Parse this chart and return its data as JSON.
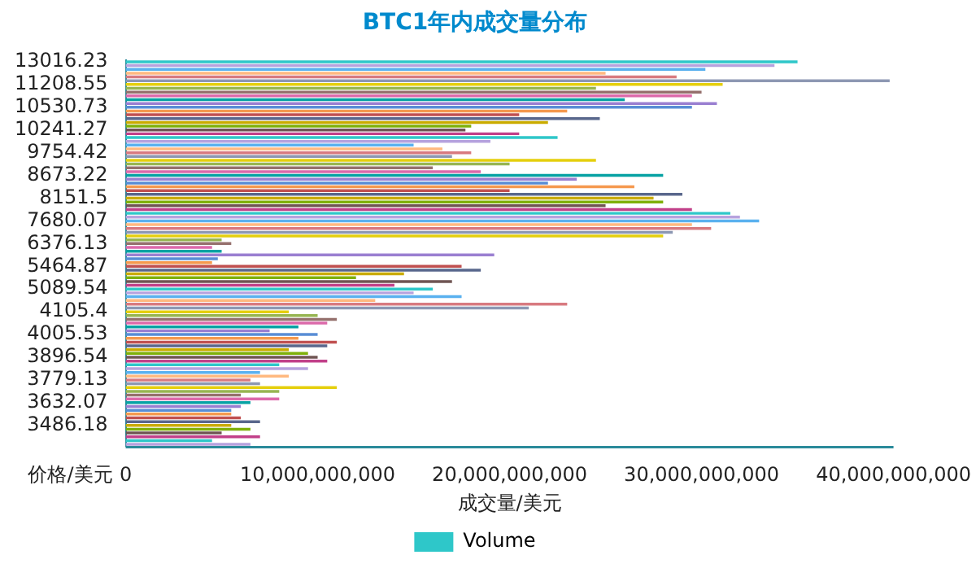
{
  "chart_data": {
    "type": "bar",
    "orientation": "horizontal",
    "title": "BTC1年内成交量分布",
    "xlabel": "成交量/美元",
    "ylabel": "价格/美元",
    "categories": [
      "13016.23",
      null,
      null,
      null,
      null,
      null,
      "11208.55",
      null,
      null,
      null,
      null,
      null,
      "10530.73",
      null,
      null,
      null,
      null,
      null,
      "10241.27",
      null,
      null,
      null,
      null,
      null,
      "9754.42",
      null,
      null,
      null,
      null,
      null,
      "8673.22",
      null,
      null,
      null,
      null,
      null,
      "8151.5",
      null,
      null,
      null,
      null,
      null,
      "7680.07",
      null,
      null,
      null,
      null,
      null,
      "6376.13",
      null,
      null,
      null,
      null,
      null,
      "5464.87",
      null,
      null,
      null,
      null,
      null,
      "5089.54",
      null,
      null,
      null,
      null,
      null,
      "4105.4",
      null,
      null,
      null,
      null,
      null,
      "4005.53",
      null,
      null,
      null,
      null,
      null,
      "3896.54",
      null,
      null,
      null,
      null,
      null,
      "3779.13",
      null,
      null,
      null,
      null,
      null,
      "3632.07",
      null,
      null,
      null,
      null,
      null,
      "3486.18",
      null,
      null,
      null,
      null,
      null
    ],
    "series": [
      {
        "name": "Volume",
        "color": "#2ec7c9",
        "values": [
          35000000000.0,
          33800000000.0,
          30200000000.0,
          25000000000.0,
          28700000000.0,
          39800000000.0,
          31100000000.0,
          24500000000.0,
          30000000000.0,
          29500000000.0,
          26000000000.0,
          30800000000.0,
          29500000000.0,
          23000000000.0,
          20500000000.0,
          24700000000.0,
          22000000000.0,
          18000000000.0,
          17700000000.0,
          20500000000.0,
          22500000000.0,
          19000000000.0,
          15000000000.0,
          16500000000.0,
          18000000000.0,
          17000000000.0,
          24500000000.0,
          20000000000.0,
          16000000000.0,
          18500000000.0,
          28000000000.0,
          23500000000.0,
          22000000000.0,
          26500000000.0,
          20000000000.0,
          29000000000.0,
          27500000000.0,
          28000000000.0,
          25000000000.0,
          29500000000.0,
          31500000000.0,
          32000000000.0,
          33000000000.0,
          29500000000.0,
          30500000000.0,
          28500000000.0,
          28000000000.0,
          5000000000.0,
          5500000000.0,
          4500000000.0,
          5000000000.0,
          19200000000.0,
          4800000000.0,
          4500000000.0,
          17500000000.0,
          18500000000.0,
          14500000000.0,
          12000000000.0,
          17000000000.0,
          14000000000.0,
          16000000000.0,
          15000000000.0,
          17500000000.0,
          13000000000.0,
          23000000000.0,
          21000000000.0,
          8500000000.0,
          10000000000.0,
          11000000000.0,
          10500000000.0,
          9000000000.0,
          7500000000.0,
          10000000000.0,
          9000000000.0,
          11000000000.0,
          10500000000.0,
          8500000000.0,
          9500000000.0,
          10000000000.0,
          10500000000.0,
          8000000000.0,
          9500000000.0,
          7000000000.0,
          8500000000.0,
          6500000000.0,
          7000000000.0,
          11000000000.0,
          8000000000.0,
          6000000000.0,
          8000000000.0,
          6500000000.0,
          6000000000.0,
          5500000000.0,
          5500000000.0,
          6000000000.0,
          7000000000.0,
          5500000000.0,
          6500000000.0,
          5000000000.0,
          7000000000.0,
          4500000000.0,
          6500000000.0
        ],
        "colors": [
          "#2ec7c9",
          "#b6a2de",
          "#5ab1ef",
          "#ffb980",
          "#d87a80",
          "#8d98b3",
          "#e5cf0d",
          "#97b552",
          "#95706d",
          "#dc69aa",
          "#07a2a4",
          "#9a7fd1",
          "#588dd5",
          "#f5994e",
          "#c05050",
          "#59678c",
          "#c9ab00",
          "#7eb00a",
          "#6f5553",
          "#c14089",
          "#2ec7c9",
          "#b6a2de",
          "#5ab1ef",
          "#ffb980",
          "#d87a80",
          "#8d98b3",
          "#e5cf0d",
          "#97b552",
          "#95706d",
          "#dc69aa",
          "#07a2a4",
          "#9a7fd1",
          "#588dd5",
          "#f5994e",
          "#c05050",
          "#59678c",
          "#c9ab00",
          "#7eb00a",
          "#6f5553",
          "#c14089",
          "#2ec7c9",
          "#b6a2de",
          "#5ab1ef",
          "#ffb980",
          "#d87a80",
          "#8d98b3",
          "#e5cf0d",
          "#97b552",
          "#95706d",
          "#dc69aa",
          "#07a2a4",
          "#9a7fd1",
          "#588dd5",
          "#f5994e",
          "#c05050",
          "#59678c",
          "#c9ab00",
          "#7eb00a",
          "#6f5553",
          "#c14089",
          "#2ec7c9",
          "#b6a2de",
          "#5ab1ef",
          "#ffb980",
          "#d87a80",
          "#8d98b3",
          "#e5cf0d",
          "#97b552",
          "#95706d",
          "#dc69aa",
          "#07a2a4",
          "#9a7fd1",
          "#588dd5",
          "#f5994e",
          "#c05050",
          "#59678c",
          "#c9ab00",
          "#7eb00a",
          "#6f5553",
          "#c14089",
          "#2ec7c9",
          "#b6a2de",
          "#5ab1ef",
          "#ffb980",
          "#d87a80",
          "#8d98b3",
          "#e5cf0d",
          "#97b552",
          "#95706d",
          "#dc69aa",
          "#07a2a4",
          "#9a7fd1",
          "#588dd5",
          "#f5994e",
          "#c05050",
          "#59678c",
          "#c9ab00",
          "#7eb00a",
          "#6f5553",
          "#c14089",
          "#2ec7c9",
          "#b6a2de"
        ]
      }
    ],
    "xlim": [
      0,
      40000000000.0
    ],
    "xticks": [
      {
        "value": 0,
        "label": "0"
      },
      {
        "value": 10000000000.0,
        "label": "10,000,000,000"
      },
      {
        "value": 20000000000.0,
        "label": "20,000,000,000"
      },
      {
        "value": 30000000000.0,
        "label": "30,000,000,000"
      },
      {
        "value": 40000000000.0,
        "label": "40,000,000,000"
      }
    ],
    "grid": false,
    "legend": "bottom"
  }
}
